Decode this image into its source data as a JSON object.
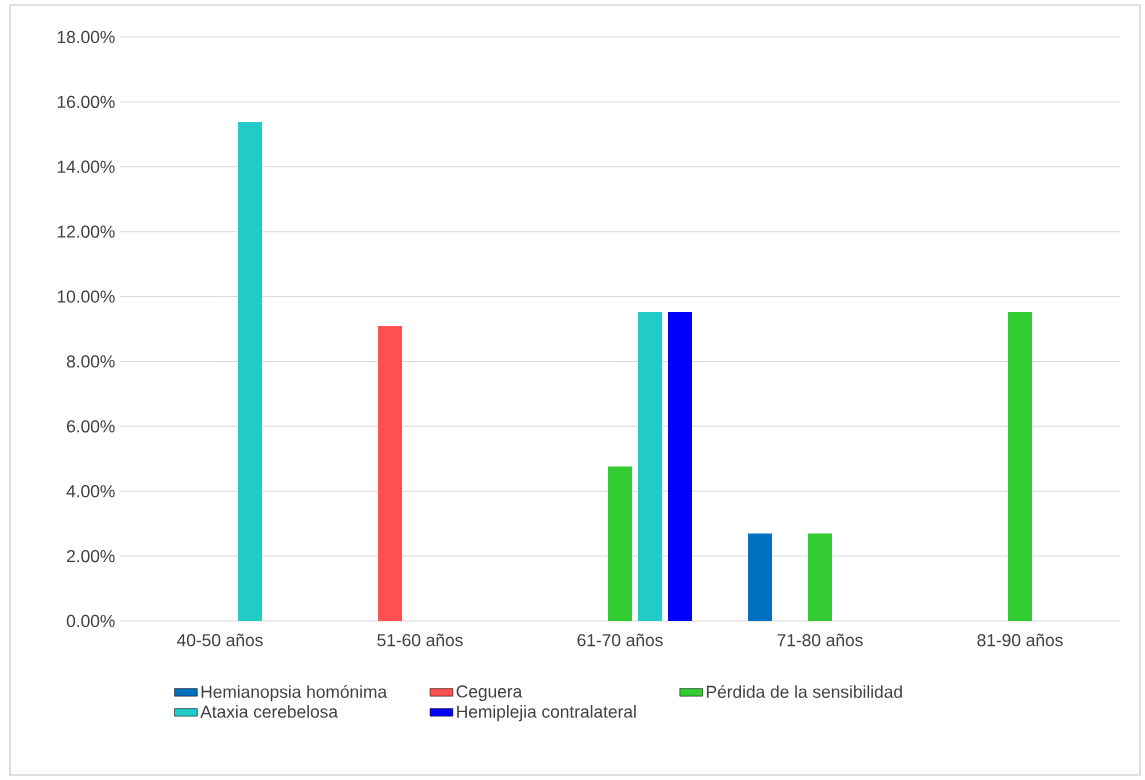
{
  "chart_data": {
    "type": "bar",
    "categories": [
      "40-50 años",
      "51-60 años",
      "61-70 años",
      "71-80 años",
      "81-90 años"
    ],
    "series": [
      {
        "name": "Hemianopsia homónima",
        "color": "#0070c0",
        "values": [
          null,
          null,
          null,
          2.7,
          null
        ]
      },
      {
        "name": "Ceguera",
        "color": "#ff5050",
        "values": [
          null,
          9.09,
          null,
          null,
          null
        ]
      },
      {
        "name": "Pérdida de la sensibilidad",
        "color": "#33cc33",
        "values": [
          null,
          null,
          4.76,
          2.7,
          9.52
        ]
      },
      {
        "name": "Ataxia cerebelosa",
        "color": "#21cbc8",
        "values": [
          15.38,
          null,
          9.52,
          null,
          null
        ]
      },
      {
        "name": "Hemiplejia contralateral",
        "color": "#0000ff",
        "values": [
          null,
          null,
          9.52,
          null,
          null
        ]
      }
    ],
    "ylim": [
      0,
      18
    ],
    "yticks": [
      {
        "value": 0,
        "label": "0.00%"
      },
      {
        "value": 2,
        "label": "2.00%"
      },
      {
        "value": 4,
        "label": "4.00%"
      },
      {
        "value": 6,
        "label": "6.00%"
      },
      {
        "value": 8,
        "label": "8.00%"
      },
      {
        "value": 10,
        "label": "10.00%"
      },
      {
        "value": 12,
        "label": "12.00%"
      },
      {
        "value": 14,
        "label": "14.00%"
      },
      {
        "value": 16,
        "label": "16.00%"
      },
      {
        "value": 18,
        "label": "18.00%"
      }
    ],
    "grid": "y",
    "legend": "bottom"
  }
}
